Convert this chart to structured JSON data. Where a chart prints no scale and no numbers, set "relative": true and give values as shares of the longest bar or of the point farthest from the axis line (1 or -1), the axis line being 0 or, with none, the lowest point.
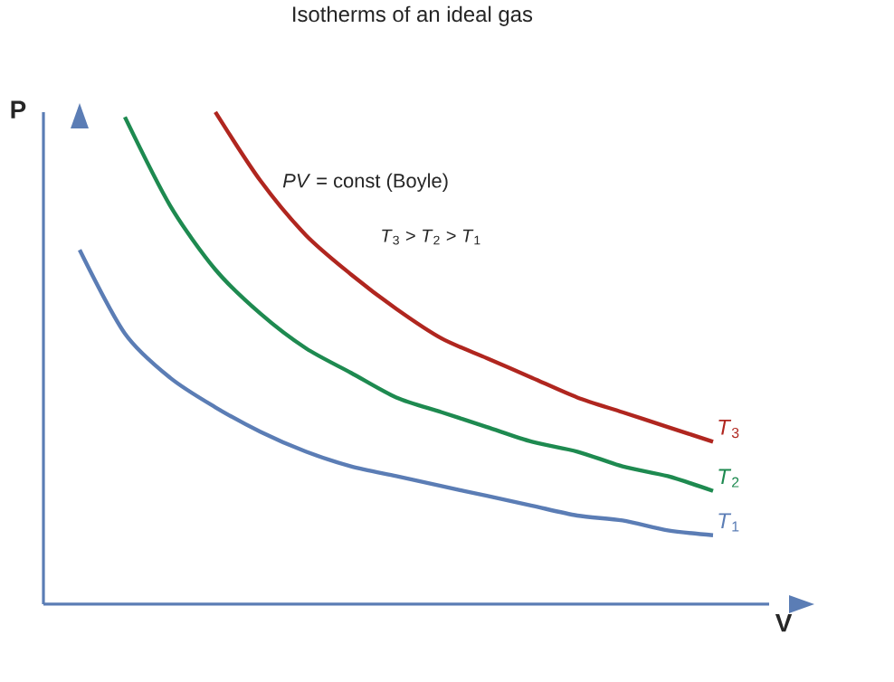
{
  "chart_data": {
    "type": "line",
    "title": "Isotherms of an ideal gas",
    "xlabel": "V",
    "ylabel": "P",
    "relative": true,
    "marker": "none",
    "categories": [
      null,
      null,
      null,
      null,
      null,
      null,
      null,
      null,
      null,
      null,
      null,
      null,
      null,
      null,
      null
    ],
    "annotations": [
      "*PV* = const (Boyle)",
      "*T*$_{3}$ > *T*$_{2}$ > *T*$_{1}$"
    ],
    "series": [
      {
        "name": "*T*$_{1}$",
        "color": "#5b7db5",
        "values": [
          0.72,
          0.55,
          0.46,
          0.4,
          0.35,
          0.31,
          0.28,
          0.26,
          0.24,
          0.22,
          0.2,
          0.18,
          0.17,
          0.15,
          0.14
        ]
      },
      {
        "name": "*T*$_{2}$",
        "color": "#1e8a50",
        "values": [
          null,
          0.99,
          0.81,
          0.68,
          0.59,
          0.52,
          0.47,
          0.42,
          0.39,
          0.36,
          0.33,
          0.31,
          0.28,
          0.26,
          0.23
        ]
      },
      {
        "name": "*T*$_{3}$",
        "color": "#b0261f",
        "values": [
          null,
          null,
          null,
          1.0,
          0.86,
          0.75,
          0.67,
          0.6,
          0.54,
          0.5,
          0.46,
          0.42,
          0.39,
          0.36,
          0.33
        ]
      }
    ]
  }
}
